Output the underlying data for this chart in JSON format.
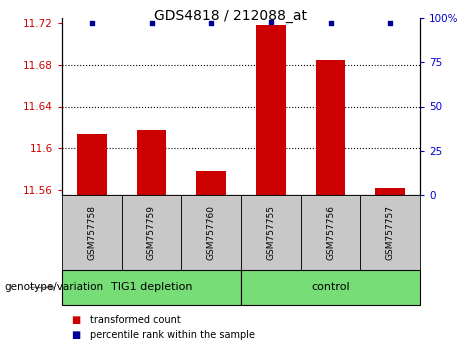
{
  "title": "GDS4818 / 212088_at",
  "samples": [
    "GSM757758",
    "GSM757759",
    "GSM757760",
    "GSM757755",
    "GSM757756",
    "GSM757757"
  ],
  "transformed_counts": [
    11.614,
    11.617,
    11.578,
    11.718,
    11.685,
    11.562
  ],
  "percentile_ranks": [
    97,
    97,
    97,
    98,
    97,
    97
  ],
  "ylim_left": [
    11.555,
    11.725
  ],
  "ylim_right": [
    0,
    100
  ],
  "yticks_left": [
    11.56,
    11.6,
    11.64,
    11.68,
    11.72
  ],
  "yticks_right": [
    0,
    25,
    50,
    75,
    100
  ],
  "ytick_labels_left": [
    "11.56",
    "11.6",
    "11.64",
    "11.68",
    "11.72"
  ],
  "ytick_labels_right": [
    "0",
    "25",
    "50",
    "75",
    "100%"
  ],
  "group_names": [
    "TIG1 depletion",
    "control"
  ],
  "group_splits": [
    3
  ],
  "bar_color": "#CC0000",
  "dot_color": "#000099",
  "dot_size": 12,
  "bar_width": 0.5,
  "grid_ticks": [
    11.6,
    11.64,
    11.68
  ],
  "background_xticklabels": "#C8C8C8",
  "background_groups": "#77DD77",
  "left_tick_color": "#CC0000",
  "right_tick_color": "#0000CC",
  "legend_red_label": "transformed count",
  "legend_blue_label": "percentile rank within the sample",
  "genotype_label": "genotype/variation",
  "title_fontsize": 10,
  "tick_fontsize": 7.5,
  "sample_fontsize": 6.5,
  "group_fontsize": 8,
  "legend_fontsize": 7,
  "genotype_fontsize": 7.5
}
